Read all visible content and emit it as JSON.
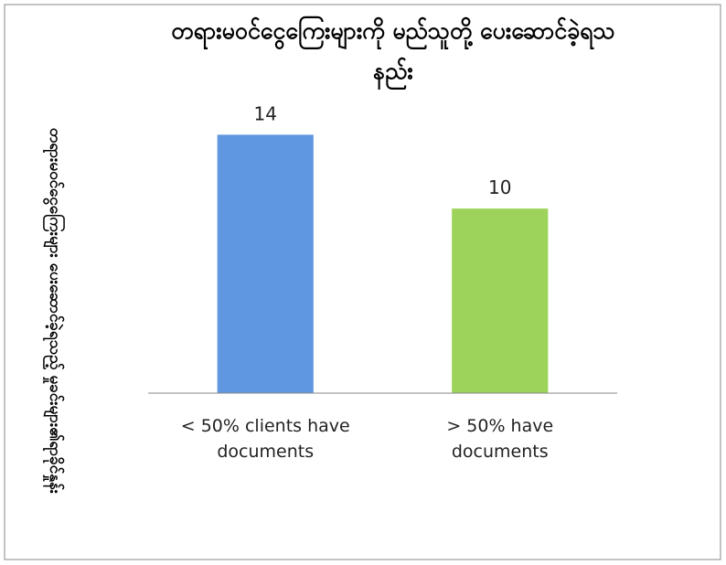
{
  "chart_data": {
    "type": "bar",
    "title": "တရားမဝင်ငွေကြေးများကို မည်သူတို့ ပေးဆောင်ခဲ့ရသနည်း",
    "ylabel": "တရားမဝင်ငွေကြေးများ ပေးဆောင်ခဲ့ရသည့် မှုခင်းများ၏ရာခိုင်နှုန်း",
    "categories": [
      "< 50% clients have documents",
      "> 50% have documents"
    ],
    "values": [
      14,
      10
    ],
    "colors": [
      "#5f97e0",
      "#9dd35b"
    ],
    "ylim": [
      0,
      16
    ]
  }
}
